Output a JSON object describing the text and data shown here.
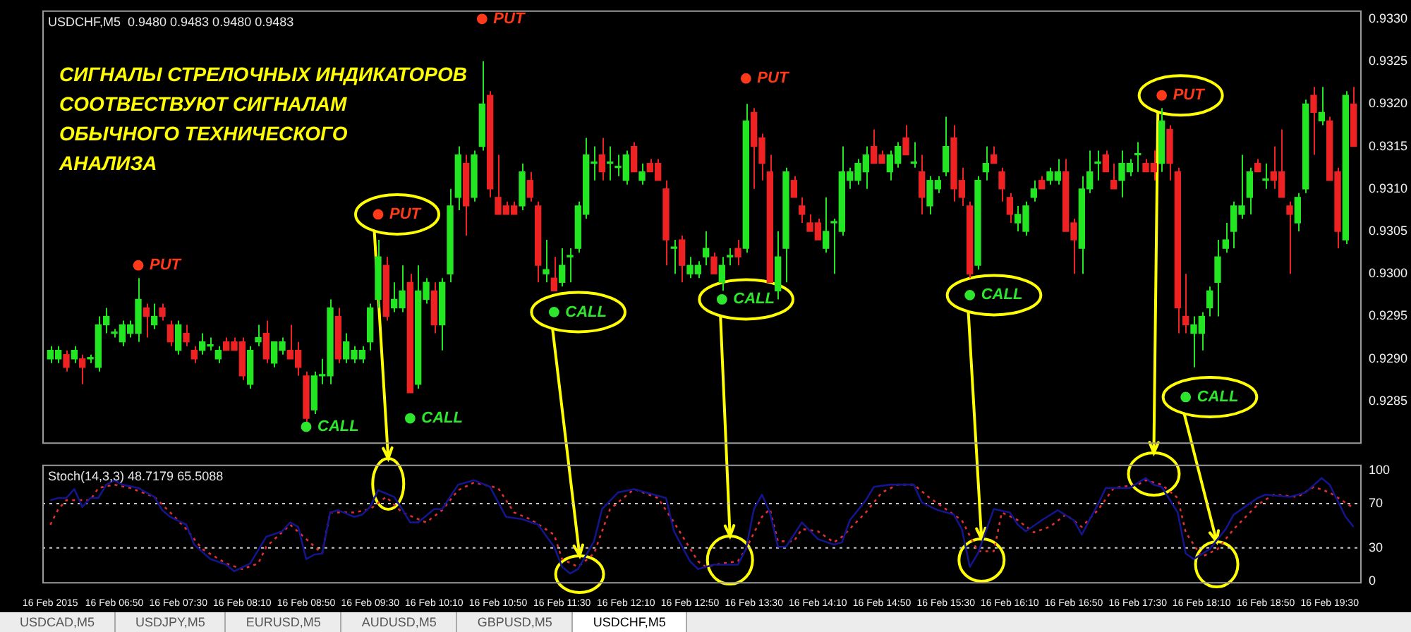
{
  "chart_data": [
    {
      "type": "candlestick",
      "title": "USDCHF,M5  0.9480 0.9483 0.9480 0.9483",
      "annotations": [
        "СИГНАЛЫ СТРЕЛОЧНЫХ ИНДИКАТОРОВ\nСООТВЕСТВУЮТ СИГНАЛАМ\nОБЫЧНОГО ТЕХНИЧЕСКОГО\nАНАЛИЗА"
      ],
      "tick_labels": "y",
      "legend": false,
      "xlim": [
        "2015-02-16T06:05",
        "2015-02-16T19:50"
      ],
      "ylim": [
        0.928,
        0.9331
      ],
      "yticks": [
        0.9285,
        {
          "value": 0.929,
          "label": "0.9290"
        },
        0.9295,
        {
          "value": 0.93,
          "label": "0.9300"
        },
        0.9305,
        {
          "value": 0.931,
          "label": "0.9310"
        },
        0.9315,
        {
          "value": 0.932,
          "label": "0.9320"
        },
        0.9325,
        {
          "value": 0.933,
          "label": "0.9330"
        }
      ],
      "x": [
        "2015-02-16T06:10",
        "2015-02-16T06:15",
        "2015-02-16T06:20",
        "2015-02-16T06:25",
        "2015-02-16T06:30",
        "2015-02-16T06:35",
        "2015-02-16T06:40",
        "2015-02-16T06:45",
        "2015-02-16T06:50",
        "2015-02-16T06:55",
        "2015-02-16T07:00",
        "2015-02-16T07:05",
        "2015-02-16T07:10",
        "2015-02-16T07:15",
        "2015-02-16T07:20",
        "2015-02-16T07:25",
        "2015-02-16T07:30",
        "2015-02-16T07:35",
        "2015-02-16T07:40",
        "2015-02-16T07:45",
        "2015-02-16T07:50",
        "2015-02-16T07:55",
        "2015-02-16T08:00",
        "2015-02-16T08:05",
        "2015-02-16T08:10",
        "2015-02-16T08:15",
        "2015-02-16T08:20",
        "2015-02-16T08:25",
        "2015-02-16T08:30",
        "2015-02-16T08:35",
        "2015-02-16T08:40",
        "2015-02-16T08:45",
        "2015-02-16T08:50",
        "2015-02-16T08:55",
        "2015-02-16T09:00",
        "2015-02-16T09:05",
        "2015-02-16T09:10",
        "2015-02-16T09:15",
        "2015-02-16T09:20",
        "2015-02-16T09:25",
        "2015-02-16T09:30",
        "2015-02-16T09:35",
        "2015-02-16T09:40",
        "2015-02-16T09:45",
        "2015-02-16T09:50",
        "2015-02-16T09:55",
        "2015-02-16T10:00",
        "2015-02-16T10:05",
        "2015-02-16T10:10",
        "2015-02-16T10:15",
        "2015-02-16T10:20",
        "2015-02-16T10:25",
        "2015-02-16T10:30",
        "2015-02-16T10:35",
        "2015-02-16T10:40",
        "2015-02-16T10:45",
        "2015-02-16T10:50",
        "2015-02-16T10:55",
        "2015-02-16T11:00",
        "2015-02-16T11:05",
        "2015-02-16T11:10",
        "2015-02-16T11:15",
        "2015-02-16T11:20",
        "2015-02-16T11:25",
        "2015-02-16T11:30",
        "2015-02-16T11:35",
        "2015-02-16T11:40",
        "2015-02-16T11:45",
        "2015-02-16T11:50",
        "2015-02-16T11:55",
        "2015-02-16T12:00",
        "2015-02-16T12:05",
        "2015-02-16T12:10",
        "2015-02-16T12:15",
        "2015-02-16T12:20",
        "2015-02-16T12:25",
        "2015-02-16T12:30",
        "2015-02-16T12:35",
        "2015-02-16T12:40",
        "2015-02-16T12:45",
        "2015-02-16T12:50",
        "2015-02-16T12:55",
        "2015-02-16T13:00",
        "2015-02-16T13:05",
        "2015-02-16T13:10",
        "2015-02-16T13:15",
        "2015-02-16T13:20",
        "2015-02-16T13:25",
        "2015-02-16T13:30",
        "2015-02-16T13:35",
        "2015-02-16T13:40",
        "2015-02-16T13:45",
        "2015-02-16T13:50",
        "2015-02-16T13:55",
        "2015-02-16T14:00",
        "2015-02-16T14:05",
        "2015-02-16T14:10",
        "2015-02-16T14:15",
        "2015-02-16T14:20",
        "2015-02-16T14:25",
        "2015-02-16T14:30",
        "2015-02-16T14:35",
        "2015-02-16T14:40",
        "2015-02-16T14:45",
        "2015-02-16T14:50",
        "2015-02-16T14:55",
        "2015-02-16T15:00",
        "2015-02-16T15:05",
        "2015-02-16T15:10",
        "2015-02-16T15:15",
        "2015-02-16T15:20",
        "2015-02-16T15:25",
        "2015-02-16T15:30",
        "2015-02-16T15:35",
        "2015-02-16T15:40",
        "2015-02-16T15:45",
        "2015-02-16T15:50",
        "2015-02-16T15:55",
        "2015-02-16T16:00",
        "2015-02-16T16:05",
        "2015-02-16T16:10",
        "2015-02-16T16:15",
        "2015-02-16T16:20",
        "2015-02-16T16:25",
        "2015-02-16T16:30",
        "2015-02-16T16:35",
        "2015-02-16T16:40",
        "2015-02-16T16:45",
        "2015-02-16T16:50",
        "2015-02-16T16:55",
        "2015-02-16T17:00",
        "2015-02-16T17:05",
        "2015-02-16T17:10",
        "2015-02-16T17:15",
        "2015-02-16T17:20",
        "2015-02-16T17:25",
        "2015-02-16T17:30",
        "2015-02-16T17:35",
        "2015-02-16T17:40",
        "2015-02-16T17:45",
        "2015-02-16T17:50",
        "2015-02-16T17:55",
        "2015-02-16T18:00",
        "2015-02-16T18:05",
        "2015-02-16T18:10",
        "2015-02-16T18:15",
        "2015-02-16T18:20",
        "2015-02-16T18:25",
        "2015-02-16T18:30",
        "2015-02-16T18:35",
        "2015-02-16T18:40",
        "2015-02-16T18:45",
        "2015-02-16T18:50",
        "2015-02-16T18:55",
        "2015-02-16T19:00",
        "2015-02-16T19:05",
        "2015-02-16T19:10",
        "2015-02-16T19:15",
        "2015-02-16T19:20",
        "2015-02-16T19:25",
        "2015-02-16T19:30",
        "2015-02-16T19:35",
        "2015-02-16T19:40",
        "2015-02-16T19:45"
      ],
      "ohlc": [
        [
          0.929,
          0.92915,
          0.92895,
          0.9291
        ],
        [
          0.929,
          0.92915,
          0.92895,
          0.9291
        ],
        [
          0.92905,
          0.9291,
          0.92885,
          0.9289
        ],
        [
          0.929,
          0.92915,
          0.92895,
          0.9291
        ],
        [
          0.929,
          0.92905,
          0.9287,
          0.9289
        ],
        [
          0.929,
          0.92905,
          0.92895,
          0.929
        ],
        [
          0.9289,
          0.9295,
          0.92885,
          0.9294
        ],
        [
          0.9294,
          0.9296,
          0.9293,
          0.9295
        ],
        [
          0.9293,
          0.92935,
          0.92925,
          0.9293
        ],
        [
          0.9292,
          0.92945,
          0.92915,
          0.9294
        ],
        [
          0.9293,
          0.92945,
          0.92925,
          0.9294
        ],
        [
          0.9293,
          0.92995,
          0.9292,
          0.9297
        ],
        [
          0.9296,
          0.92965,
          0.92925,
          0.9295
        ],
        [
          0.9294,
          0.92965,
          0.92935,
          0.9295
        ],
        [
          0.9296,
          0.92965,
          0.92945,
          0.9295
        ],
        [
          0.9294,
          0.92945,
          0.92915,
          0.9292
        ],
        [
          0.9291,
          0.92945,
          0.92905,
          0.9294
        ],
        [
          0.9293,
          0.9294,
          0.92915,
          0.9292
        ],
        [
          0.9291,
          0.92915,
          0.92895,
          0.929
        ],
        [
          0.9291,
          0.9293,
          0.92905,
          0.9292
        ],
        [
          0.92915,
          0.92925,
          0.9291,
          0.92915
        ],
        [
          0.929,
          0.92915,
          0.92895,
          0.9291
        ],
        [
          0.9292,
          0.92925,
          0.9291,
          0.9291
        ],
        [
          0.9292,
          0.92925,
          0.9291,
          0.9291
        ],
        [
          0.9292,
          0.92925,
          0.92875,
          0.9288
        ],
        [
          0.9287,
          0.92915,
          0.92865,
          0.9291
        ],
        [
          0.9292,
          0.9294,
          0.92915,
          0.92925
        ],
        [
          0.9293,
          0.92945,
          0.92895,
          0.929
        ],
        [
          0.92895,
          0.9292,
          0.9289,
          0.9292
        ],
        [
          0.9291,
          0.92925,
          0.92905,
          0.9292
        ],
        [
          0.9291,
          0.9294,
          0.929,
          0.929
        ],
        [
          0.9291,
          0.9292,
          0.9288,
          0.9289
        ],
        [
          0.9288,
          0.92885,
          0.92825,
          0.9283
        ],
        [
          0.9284,
          0.92885,
          0.92835,
          0.9288
        ],
        [
          0.9288,
          0.929,
          0.9287,
          0.9288
        ],
        [
          0.9288,
          0.9297,
          0.9287,
          0.9296
        ],
        [
          0.9295,
          0.9296,
          0.92895,
          0.929
        ],
        [
          0.929,
          0.9293,
          0.92895,
          0.9292
        ],
        [
          0.929,
          0.92915,
          0.92895,
          0.9291
        ],
        [
          0.929,
          0.92915,
          0.92895,
          0.9291
        ],
        [
          0.9292,
          0.92965,
          0.9291,
          0.9296
        ],
        [
          0.9297,
          0.9304,
          0.9296,
          0.9302
        ],
        [
          0.9301,
          0.9302,
          0.92945,
          0.9295
        ],
        [
          0.9296,
          0.9299,
          0.92955,
          0.9297
        ],
        [
          0.9296,
          0.9301,
          0.92955,
          0.9298
        ],
        [
          0.9299,
          0.93,
          0.9286,
          0.9286
        ],
        [
          0.9287,
          0.9301,
          0.92865,
          0.9298
        ],
        [
          0.9297,
          0.92995,
          0.92965,
          0.9299
        ],
        [
          0.9298,
          0.9299,
          0.9293,
          0.9294
        ],
        [
          0.9294,
          0.92995,
          0.9291,
          0.9299
        ],
        [
          0.93,
          0.931,
          0.9299,
          0.9308
        ],
        [
          0.9309,
          0.9315,
          0.93075,
          0.9314
        ],
        [
          0.9313,
          0.9314,
          0.93045,
          0.9308
        ],
        [
          0.9309,
          0.93145,
          0.93085,
          0.9314
        ],
        [
          0.9315,
          0.9325,
          0.93145,
          0.932
        ],
        [
          0.9321,
          0.93215,
          0.9309,
          0.931
        ],
        [
          0.9309,
          0.9314,
          0.9307,
          0.9307
        ],
        [
          0.9308,
          0.93085,
          0.9307,
          0.9307
        ],
        [
          0.9308,
          0.93085,
          0.9307,
          0.9307
        ],
        [
          0.9308,
          0.9313,
          0.93075,
          0.9312
        ],
        [
          0.9311,
          0.9312,
          0.93085,
          0.9309
        ],
        [
          0.9308,
          0.93085,
          0.9299,
          0.9301
        ],
        [
          0.93,
          0.9304,
          0.9299,
          0.93005
        ],
        [
          0.92995,
          0.9302,
          0.9298,
          0.9298
        ],
        [
          0.9299,
          0.9303,
          0.92985,
          0.9301
        ],
        [
          0.9302,
          0.9303,
          0.9299,
          0.9302
        ],
        [
          0.9303,
          0.93085,
          0.93025,
          0.9308
        ],
        [
          0.9307,
          0.9316,
          0.93065,
          0.9314
        ],
        [
          0.9313,
          0.9315,
          0.9311,
          0.9313
        ],
        [
          0.9314,
          0.9316,
          0.9311,
          0.9312
        ],
        [
          0.9313,
          0.9315,
          0.9311,
          0.9313
        ],
        [
          0.93125,
          0.9314,
          0.93115,
          0.93125
        ],
        [
          0.9311,
          0.93145,
          0.93105,
          0.9314
        ],
        [
          0.9315,
          0.93155,
          0.9312,
          0.9312
        ],
        [
          0.9311,
          0.9313,
          0.93105,
          0.9312
        ],
        [
          0.9313,
          0.93135,
          0.9312,
          0.9312
        ],
        [
          0.9313,
          0.93135,
          0.9311,
          0.9311
        ],
        [
          0.931,
          0.9311,
          0.9301,
          0.9304
        ],
        [
          0.9303,
          0.9304,
          0.93,
          0.9303
        ],
        [
          0.9304,
          0.93045,
          0.9299,
          0.9301
        ],
        [
          0.93,
          0.9302,
          0.92995,
          0.9301
        ],
        [
          0.93,
          0.93015,
          0.92995,
          0.9301
        ],
        [
          0.9302,
          0.9305,
          0.9301,
          0.9303
        ],
        [
          0.9302,
          0.93025,
          0.93,
          0.93
        ],
        [
          0.9299,
          0.9302,
          0.9298,
          0.9301
        ],
        [
          0.9302,
          0.9303,
          0.9301,
          0.9302
        ],
        [
          0.9303,
          0.9304,
          0.9301,
          0.9302
        ],
        [
          0.9303,
          0.932,
          0.93025,
          0.9318
        ],
        [
          0.9319,
          0.93195,
          0.931,
          0.9315
        ],
        [
          0.9316,
          0.93165,
          0.9311,
          0.9313
        ],
        [
          0.9312,
          0.9314,
          0.9299,
          0.9299
        ],
        [
          0.9298,
          0.9305,
          0.9297,
          0.9302
        ],
        [
          0.9303,
          0.93125,
          0.9299,
          0.9312
        ],
        [
          0.9311,
          0.93115,
          0.9309,
          0.9309
        ],
        [
          0.9308,
          0.9309,
          0.9306,
          0.9307
        ],
        [
          0.9306,
          0.9307,
          0.9305,
          0.9305
        ],
        [
          0.9306,
          0.93065,
          0.9304,
          0.9304
        ],
        [
          0.9303,
          0.9309,
          0.93025,
          0.9305
        ],
        [
          0.9306,
          0.93065,
          0.93,
          0.9306
        ],
        [
          0.9305,
          0.9315,
          0.93045,
          0.9312
        ],
        [
          0.9311,
          0.93125,
          0.931,
          0.9312
        ],
        [
          0.9311,
          0.93135,
          0.93105,
          0.9313
        ],
        [
          0.9312,
          0.9315,
          0.931,
          0.9314
        ],
        [
          0.9315,
          0.9317,
          0.9313,
          0.9313
        ],
        [
          0.9314,
          0.93145,
          0.9313,
          0.9313
        ],
        [
          0.9312,
          0.93145,
          0.9311,
          0.9314
        ],
        [
          0.9313,
          0.93155,
          0.93125,
          0.9315
        ],
        [
          0.9316,
          0.93175,
          0.9314,
          0.9314
        ],
        [
          0.9313,
          0.93155,
          0.93125,
          0.9313
        ],
        [
          0.9312,
          0.9314,
          0.9307,
          0.9309
        ],
        [
          0.9308,
          0.93115,
          0.9307,
          0.9311
        ],
        [
          0.931,
          0.93115,
          0.93095,
          0.9311
        ],
        [
          0.9312,
          0.93185,
          0.93115,
          0.9315
        ],
        [
          0.9316,
          0.93175,
          0.93085,
          0.931
        ],
        [
          0.9311,
          0.93125,
          0.9308,
          0.9309
        ],
        [
          0.9308,
          0.93085,
          0.92995,
          0.93
        ],
        [
          0.9301,
          0.93115,
          0.93005,
          0.9311
        ],
        [
          0.9312,
          0.9315,
          0.9311,
          0.9313
        ],
        [
          0.9314,
          0.9315,
          0.9313,
          0.9313
        ],
        [
          0.9312,
          0.93125,
          0.93085,
          0.931
        ],
        [
          0.9309,
          0.93095,
          0.9306,
          0.9307
        ],
        [
          0.9306,
          0.9308,
          0.9305,
          0.9307
        ],
        [
          0.9305,
          0.93085,
          0.93045,
          0.9308
        ],
        [
          0.9309,
          0.9311,
          0.93085,
          0.931
        ],
        [
          0.9311,
          0.93115,
          0.931,
          0.931
        ],
        [
          0.9311,
          0.93125,
          0.93105,
          0.9312
        ],
        [
          0.9311,
          0.93135,
          0.93105,
          0.9312
        ],
        [
          0.9312,
          0.93135,
          0.9305,
          0.9305
        ],
        [
          0.9306,
          0.93065,
          0.93,
          0.9304
        ],
        [
          0.9303,
          0.93115,
          0.93,
          0.931
        ],
        [
          0.931,
          0.93145,
          0.93095,
          0.9312
        ],
        [
          0.9313,
          0.93145,
          0.9311,
          0.9313
        ],
        [
          0.9314,
          0.93145,
          0.9312,
          0.9312
        ],
        [
          0.9311,
          0.9313,
          0.931,
          0.931
        ],
        [
          0.9311,
          0.93145,
          0.9309,
          0.9313
        ],
        [
          0.9312,
          0.93135,
          0.93115,
          0.9313
        ],
        [
          0.9314,
          0.93155,
          0.9312,
          0.9314
        ],
        [
          0.9313,
          0.93135,
          0.9312,
          0.9312
        ],
        [
          0.9313,
          0.93145,
          0.9311,
          0.9312
        ],
        [
          0.9313,
          0.93195,
          0.9312,
          0.9318
        ],
        [
          0.9317,
          0.93175,
          0.9311,
          0.9313
        ],
        [
          0.9312,
          0.93125,
          0.9293,
          0.9296
        ],
        [
          0.9295,
          0.93,
          0.9293,
          0.9294
        ],
        [
          0.9293,
          0.9295,
          0.9289,
          0.9294
        ],
        [
          0.9293,
          0.92955,
          0.9291,
          0.9295
        ],
        [
          0.9296,
          0.92985,
          0.9295,
          0.9298
        ],
        [
          0.9299,
          0.9304,
          0.9295,
          0.9302
        ],
        [
          0.9303,
          0.9306,
          0.93025,
          0.9304
        ],
        [
          0.9305,
          0.93085,
          0.9303,
          0.9308
        ],
        [
          0.9307,
          0.9314,
          0.93065,
          0.9308
        ],
        [
          0.9309,
          0.93125,
          0.9307,
          0.9312
        ],
        [
          0.9313,
          0.93135,
          0.9312,
          0.9312
        ],
        [
          0.9311,
          0.9313,
          0.931,
          0.9311
        ],
        [
          0.9312,
          0.9315,
          0.931,
          0.9311
        ],
        [
          0.9312,
          0.9317,
          0.9309,
          0.9309
        ],
        [
          0.9308,
          0.93085,
          0.93,
          0.9307
        ],
        [
          0.9306,
          0.93095,
          0.9305,
          0.9309
        ],
        [
          0.931,
          0.93205,
          0.93095,
          0.932
        ],
        [
          0.9321,
          0.9322,
          0.9314,
          0.9319
        ],
        [
          0.9318,
          0.9322,
          0.93175,
          0.9319
        ],
        [
          0.9318,
          0.93185,
          0.9311,
          0.9311
        ],
        [
          0.9312,
          0.93125,
          0.9303,
          0.9305
        ],
        [
          0.9304,
          0.93215,
          0.93035,
          0.9321
        ],
        [
          0.932,
          0.9322,
          0.9315,
          0.9315
        ]
      ],
      "marker": "circle",
      "series": [
        {
          "name": "PUT",
          "type": "scatter",
          "color": "#ff3a1a",
          "x": [
            "2015-02-16T07:05",
            "2015-02-16T09:35",
            "2015-02-16T10:40",
            "2015-02-16T13:25",
            "2015-02-16T17:45"
          ],
          "values": [
            0.9301,
            0.9307,
            0.933,
            0.9323,
            0.9321
          ]
        },
        {
          "name": "CALL",
          "type": "scatter",
          "color": "#2ee62e",
          "x": [
            "2015-02-16T08:50",
            "2015-02-16T09:55",
            "2015-02-16T11:25",
            "2015-02-16T13:10",
            "2015-02-16T15:45",
            "2015-02-16T18:00"
          ],
          "values": [
            0.9282,
            0.9283,
            0.92955,
            0.9297,
            0.92975,
            0.92855
          ]
        }
      ]
    },
    {
      "type": "line",
      "title": "Stoch(14,3,3) 48.7179 65.5088",
      "legend": false,
      "marker": "none",
      "annotations": [
        "USDCAD,M5",
        "USDJPY,M5",
        "EURUSD,M5",
        "AUDUSD,M5",
        "GBPUSD,M5",
        "USDCHF,M5"
      ],
      "xlim": [
        "2015-02-16T06:05",
        "2015-02-16T19:50"
      ],
      "xticks": [
        {
          "value": "2015-02-16T06:10",
          "label": "16 Feb 2015"
        },
        {
          "value": "2015-02-16T06:50",
          "label": "16 Feb 06:50"
        },
        {
          "value": "2015-02-16T07:30",
          "label": "16 Feb 07:30"
        },
        {
          "value": "2015-02-16T08:10",
          "label": "16 Feb 08:10"
        },
        {
          "value": "2015-02-16T08:50",
          "label": "16 Feb 08:50"
        },
        {
          "value": "2015-02-16T09:30",
          "label": "16 Feb 09:30"
        },
        {
          "value": "2015-02-16T10:10",
          "label": "16 Feb 10:10"
        },
        {
          "value": "2015-02-16T10:50",
          "label": "16 Feb 10:50"
        },
        {
          "value": "2015-02-16T11:30",
          "label": "16 Feb 11:30"
        },
        {
          "value": "2015-02-16T12:10",
          "label": "16 Feb 12:10"
        },
        {
          "value": "2015-02-16T12:50",
          "label": "16 Feb 12:50"
        },
        {
          "value": "2015-02-16T13:30",
          "label": "16 Feb 13:30"
        },
        {
          "value": "2015-02-16T14:10",
          "label": "16 Feb 14:10"
        },
        {
          "value": "2015-02-16T14:50",
          "label": "16 Feb 14:50"
        },
        {
          "value": "2015-02-16T15:30",
          "label": "16 Feb 15:30"
        },
        {
          "value": "2015-02-16T16:10",
          "label": "16 Feb 16:10"
        },
        {
          "value": "2015-02-16T16:50",
          "label": "16 Feb 16:50"
        },
        {
          "value": "2015-02-16T17:30",
          "label": "16 Feb 17:30"
        },
        {
          "value": "2015-02-16T18:10",
          "label": "16 Feb 18:10"
        },
        {
          "value": "2015-02-16T18:50",
          "label": "16 Feb 18:50"
        },
        {
          "value": "2015-02-16T19:30",
          "label": "16 Feb 19:30"
        }
      ],
      "ylim": [
        -2,
        105
      ],
      "yticks": [
        0,
        30,
        70,
        100
      ],
      "ref_lines": [
        {
          "axis": "y",
          "value": 70,
          "color": "#c8c8c8",
          "line_style": "dotted"
        },
        {
          "axis": "y",
          "value": 30,
          "color": "#c8c8c8",
          "line_style": "dotted"
        }
      ],
      "series": [
        {
          "color": "#14148c",
          "line_style": "solid",
          "x": [
            "2015-02-16T06:10",
            "2015-02-16T06:15",
            "2015-02-16T06:20",
            "2015-02-16T06:25",
            "2015-02-16T06:30",
            "2015-02-16T06:35",
            "2015-02-16T06:40",
            "2015-02-16T06:45",
            "2015-02-16T06:50",
            "2015-02-16T06:55",
            "2015-02-16T07:05",
            "2015-02-16T07:15",
            "2015-02-16T07:20",
            "2015-02-16T07:25",
            "2015-02-16T07:35",
            "2015-02-16T07:40",
            "2015-02-16T07:50",
            "2015-02-16T08:00",
            "2015-02-16T08:05",
            "2015-02-16T08:15",
            "2015-02-16T08:25",
            "2015-02-16T08:35",
            "2015-02-16T08:40",
            "2015-02-16T08:45",
            "2015-02-16T08:50",
            "2015-02-16T08:55",
            "2015-02-16T09:00",
            "2015-02-16T09:05",
            "2015-02-16T09:10",
            "2015-02-16T09:20",
            "2015-02-16T09:25",
            "2015-02-16T09:30",
            "2015-02-16T09:35",
            "2015-02-16T09:45",
            "2015-02-16T09:50",
            "2015-02-16T09:55",
            "2015-02-16T10:00",
            "2015-02-16T10:10",
            "2015-02-16T10:15",
            "2015-02-16T10:25",
            "2015-02-16T10:30",
            "2015-02-16T10:35",
            "2015-02-16T10:45",
            "2015-02-16T10:55",
            "2015-02-16T11:05",
            "2015-02-16T11:15",
            "2015-02-16T11:25",
            "2015-02-16T11:30",
            "2015-02-16T11:35",
            "2015-02-16T11:40",
            "2015-02-16T11:50",
            "2015-02-16T11:55",
            "2015-02-16T12:05",
            "2015-02-16T12:15",
            "2015-02-16T12:25",
            "2015-02-16T12:35",
            "2015-02-16T12:40",
            "2015-02-16T12:50",
            "2015-02-16T12:55",
            "2015-02-16T13:05",
            "2015-02-16T13:20",
            "2015-02-16T13:25",
            "2015-02-16T13:30",
            "2015-02-16T13:35",
            "2015-02-16T13:40",
            "2015-02-16T13:45",
            "2015-02-16T13:50",
            "2015-02-16T14:00",
            "2015-02-16T14:10",
            "2015-02-16T14:20",
            "2015-02-16T14:25",
            "2015-02-16T14:30",
            "2015-02-16T14:40",
            "2015-02-16T14:45",
            "2015-02-16T14:55",
            "2015-02-16T15:05",
            "2015-02-16T15:10",
            "2015-02-16T15:15",
            "2015-02-16T15:25",
            "2015-02-16T15:35",
            "2015-02-16T15:40",
            "2015-02-16T15:45",
            "2015-02-16T15:50",
            "2015-02-16T16:00",
            "2015-02-16T16:10",
            "2015-02-16T16:15",
            "2015-02-16T16:20",
            "2015-02-16T16:30",
            "2015-02-16T16:40",
            "2015-02-16T16:50",
            "2015-02-16T16:55",
            "2015-02-16T17:05",
            "2015-02-16T17:10",
            "2015-02-16T17:25",
            "2015-02-16T17:35",
            "2015-02-16T17:40",
            "2015-02-16T17:45",
            "2015-02-16T17:55",
            "2015-02-16T18:00",
            "2015-02-16T18:05",
            "2015-02-16T18:15",
            "2015-02-16T18:25",
            "2015-02-16T18:30",
            "2015-02-16T18:45",
            "2015-02-16T18:50",
            "2015-02-16T19:05",
            "2015-02-16T19:15",
            "2015-02-16T19:25",
            "2015-02-16T19:30",
            "2015-02-16T19:40",
            "2015-02-16T19:45"
          ],
          "values": [
            73,
            75,
            75,
            83,
            67,
            75,
            75,
            87,
            91,
            87,
            84,
            76,
            64,
            58,
            51,
            33,
            20,
            15,
            9,
            16,
            40,
            45,
            53,
            49,
            20,
            24,
            25,
            62,
            64,
            58,
            60,
            67,
            82,
            76,
            65,
            53,
            53,
            65,
            65,
            87,
            89,
            91,
            85,
            58,
            56,
            51,
            31,
            13,
            7,
            11,
            36,
            65,
            80,
            83,
            79,
            75,
            45,
            18,
            11,
            15,
            15,
            29,
            65,
            78,
            62,
            31,
            31,
            53,
            38,
            33,
            35,
            55,
            73,
            85,
            87,
            87,
            87,
            71,
            64,
            60,
            47,
            13,
            25,
            65,
            62,
            51,
            45,
            55,
            64,
            55,
            42,
            69,
            84,
            84,
            93,
            87,
            85,
            62,
            25,
            20,
            29,
            47,
            60,
            75,
            78,
            76,
            80,
            93,
            87,
            58,
            49
          ]
        },
        {
          "color": "#e03030",
          "line_style": "dotted",
          "x": [
            "2015-02-16T06:10",
            "2015-02-16T06:15",
            "2015-02-16T06:20",
            "2015-02-16T06:35",
            "2015-02-16T06:40",
            "2015-02-16T06:50",
            "2015-02-16T07:00",
            "2015-02-16T07:15",
            "2015-02-16T07:25",
            "2015-02-16T07:35",
            "2015-02-16T07:45",
            "2015-02-16T08:00",
            "2015-02-16T08:10",
            "2015-02-16T08:20",
            "2015-02-16T08:25",
            "2015-02-16T08:40",
            "2015-02-16T08:50",
            "2015-02-16T09:00",
            "2015-02-16T09:05",
            "2015-02-16T09:20",
            "2015-02-16T09:30",
            "2015-02-16T09:40",
            "2015-02-16T09:50",
            "2015-02-16T10:05",
            "2015-02-16T10:15",
            "2015-02-16T10:25",
            "2015-02-16T10:35",
            "2015-02-16T10:50",
            "2015-02-16T11:00",
            "2015-02-16T11:10",
            "2015-02-16T11:25",
            "2015-02-16T11:30",
            "2015-02-16T11:40",
            "2015-02-16T11:50",
            "2015-02-16T12:00",
            "2015-02-16T12:15",
            "2015-02-16T12:30",
            "2015-02-16T12:40",
            "2015-02-16T12:55",
            "2015-02-16T13:00",
            "2015-02-16T13:10",
            "2015-02-16T13:20",
            "2015-02-16T13:25",
            "2015-02-16T13:35",
            "2015-02-16T13:40",
            "2015-02-16T13:45",
            "2015-02-16T13:55",
            "2015-02-16T14:00",
            "2015-02-16T14:10",
            "2015-02-16T14:20",
            "2015-02-16T14:25",
            "2015-02-16T14:40",
            "2015-02-16T14:50",
            "2015-02-16T15:00",
            "2015-02-16T15:10",
            "2015-02-16T15:20",
            "2015-02-16T15:30",
            "2015-02-16T15:40",
            "2015-02-16T15:50",
            "2015-02-16T16:00",
            "2015-02-16T16:05",
            "2015-02-16T16:15",
            "2015-02-16T16:25",
            "2015-02-16T16:35",
            "2015-02-16T16:45",
            "2015-02-16T16:55",
            "2015-02-16T17:05",
            "2015-02-16T17:15",
            "2015-02-16T17:30",
            "2015-02-16T17:35",
            "2015-02-16T17:45",
            "2015-02-16T17:55",
            "2015-02-16T18:00",
            "2015-02-16T18:10",
            "2015-02-16T18:20",
            "2015-02-16T18:30",
            "2015-02-16T18:45",
            "2015-02-16T18:55",
            "2015-02-16T19:10",
            "2015-02-16T19:20",
            "2015-02-16T19:30",
            "2015-02-16T19:45"
          ],
          "values": [
            51,
            65,
            73,
            73,
            84,
            87,
            84,
            76,
            62,
            47,
            29,
            16,
            11,
            16,
            31,
            51,
            38,
            25,
            62,
            62,
            65,
            76,
            62,
            53,
            64,
            82,
            89,
            84,
            62,
            56,
            42,
            20,
            13,
            25,
            65,
            83,
            75,
            53,
            18,
            13,
            16,
            18,
            29,
            58,
            65,
            36,
            36,
            47,
            45,
            35,
            40,
            62,
            80,
            87,
            87,
            75,
            65,
            55,
            27,
            27,
            62,
            55,
            44,
            49,
            60,
            49,
            64,
            84,
            87,
            91,
            87,
            75,
            44,
            22,
            29,
            47,
            69,
            78,
            76,
            85,
            80,
            66
          ]
        }
      ]
    }
  ]
}
